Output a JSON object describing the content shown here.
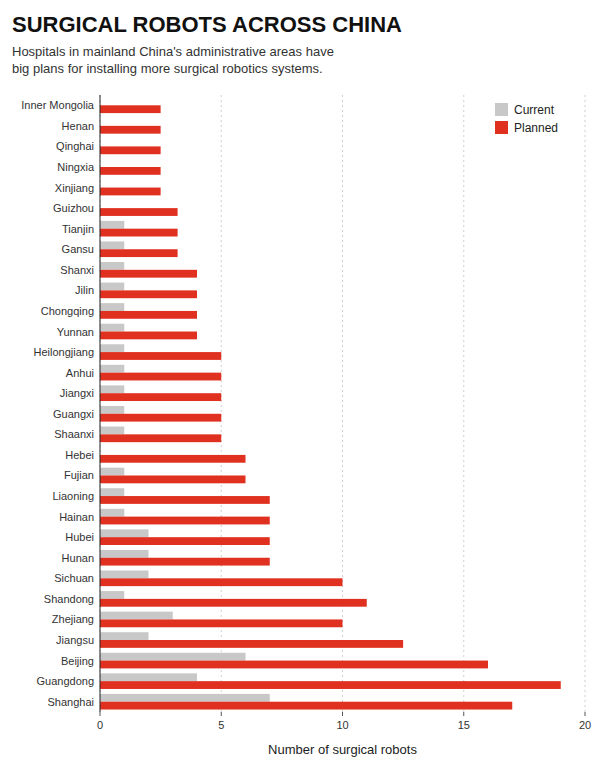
{
  "chart_data": {
    "type": "bar",
    "orientation": "horizontal",
    "title": "SURGICAL ROBOTS ACROSS CHINA",
    "subtitle": "Hospitals in mainland China's administrative areas have\nbig plans for installing more surgical robotics systems.",
    "xlabel": "Number of surgical robots",
    "categories": [
      "Inner Mongolia",
      "Henan",
      "Qinghai",
      "Ningxia",
      "Xinjiang",
      "Guizhou",
      "Tianjin",
      "Gansu",
      "Shanxi",
      "Jilin",
      "Chongqing",
      "Yunnan",
      "Heilongjiang",
      "Anhui",
      "Jiangxi",
      "Guangxi",
      "Shaanxi",
      "Hebei",
      "Fujian",
      "Liaoning",
      "Hainan",
      "Hubei",
      "Hunan",
      "Sichuan",
      "Shandong",
      "Zhejiang",
      "Jiangsu",
      "Beijing",
      "Guangdong",
      "Shanghai"
    ],
    "series": [
      {
        "name": "Current",
        "color": "#c8c8c8",
        "values": [
          0,
          0,
          0,
          0,
          0,
          0,
          1,
          1,
          1,
          1,
          1,
          1,
          1,
          1,
          1,
          1,
          1,
          0,
          1,
          1,
          1,
          2,
          2,
          2,
          1,
          3,
          2,
          6,
          4,
          7
        ]
      },
      {
        "name": "Planned",
        "color": "#e03020",
        "values": [
          2.5,
          2.5,
          2.5,
          2.5,
          2.5,
          3.2,
          3.2,
          3.2,
          4.0,
          4.0,
          4.0,
          4.0,
          5.0,
          5.0,
          5.0,
          5.0,
          5.0,
          6.0,
          6.0,
          7.0,
          7.0,
          7.0,
          7.0,
          10.0,
          11.0,
          10.0,
          12.5,
          16.0,
          19.0,
          17.0
        ]
      }
    ],
    "xlim": [
      0,
      20
    ],
    "xticks": [
      0,
      5,
      10,
      15,
      20
    ],
    "grid": true,
    "legend": "upper-right"
  }
}
